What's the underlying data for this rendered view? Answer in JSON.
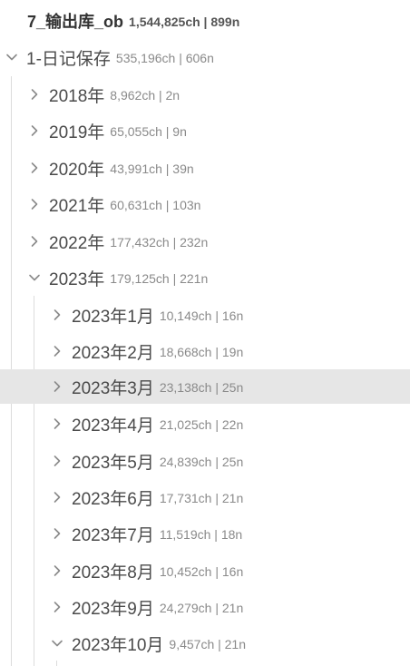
{
  "root": {
    "name": "7_输出库_ob",
    "stats": "1,544,825ch | 899n"
  },
  "folder": {
    "name": "1-日记保存",
    "stats": "535,196ch | 606n",
    "expanded": true
  },
  "years": [
    {
      "name": "2018年",
      "stats": "8,962ch | 2n",
      "expanded": false
    },
    {
      "name": "2019年",
      "stats": "65,055ch | 9n",
      "expanded": false
    },
    {
      "name": "2020年",
      "stats": "43,991ch | 39n",
      "expanded": false
    },
    {
      "name": "2021年",
      "stats": "60,631ch | 103n",
      "expanded": false
    },
    {
      "name": "2022年",
      "stats": "177,432ch | 232n",
      "expanded": false
    },
    {
      "name": "2023年",
      "stats": "179,125ch | 221n",
      "expanded": true
    }
  ],
  "months": [
    {
      "name": "2023年1月",
      "stats": "10,149ch | 16n",
      "expanded": false,
      "selected": false
    },
    {
      "name": "2023年2月",
      "stats": "18,668ch | 19n",
      "expanded": false,
      "selected": false
    },
    {
      "name": "2023年3月",
      "stats": "23,138ch | 25n",
      "expanded": false,
      "selected": true
    },
    {
      "name": "2023年4月",
      "stats": "21,025ch | 22n",
      "expanded": false,
      "selected": false
    },
    {
      "name": "2023年5月",
      "stats": "24,839ch | 25n",
      "expanded": false,
      "selected": false
    },
    {
      "name": "2023年6月",
      "stats": "17,731ch | 21n",
      "expanded": false,
      "selected": false
    },
    {
      "name": "2023年7月",
      "stats": "11,519ch | 18n",
      "expanded": false,
      "selected": false
    },
    {
      "name": "2023年8月",
      "stats": "10,452ch | 16n",
      "expanded": false,
      "selected": false
    },
    {
      "name": "2023年9月",
      "stats": "24,279ch | 21n",
      "expanded": false,
      "selected": false
    },
    {
      "name": "2023年10月",
      "stats": "9,457ch | 21n",
      "expanded": true,
      "selected": false
    }
  ],
  "colors": {
    "selected_row": "#e6e6e6",
    "chevron": "#8a8a8a",
    "guide_line": "#dcdcdc"
  },
  "icons": {
    "collapsed": "chevron-right-icon",
    "expanded": "chevron-down-icon"
  }
}
